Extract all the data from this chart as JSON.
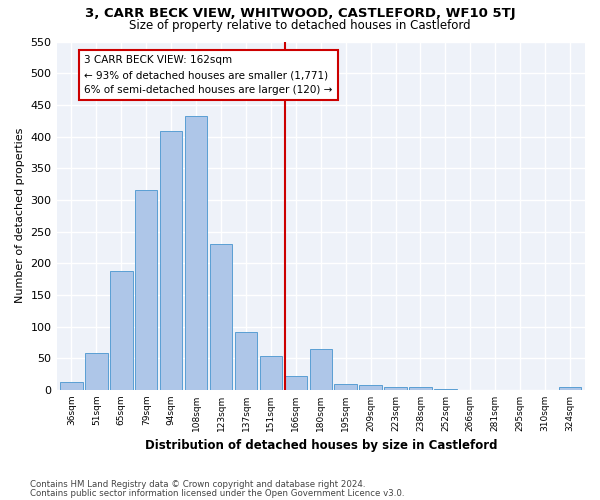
{
  "title": "3, CARR BECK VIEW, WHITWOOD, CASTLEFORD, WF10 5TJ",
  "subtitle": "Size of property relative to detached houses in Castleford",
  "xlabel": "Distribution of detached houses by size in Castleford",
  "ylabel": "Number of detached properties",
  "categories": [
    "36sqm",
    "51sqm",
    "65sqm",
    "79sqm",
    "94sqm",
    "108sqm",
    "123sqm",
    "137sqm",
    "151sqm",
    "166sqm",
    "180sqm",
    "195sqm",
    "209sqm",
    "223sqm",
    "238sqm",
    "252sqm",
    "266sqm",
    "281sqm",
    "295sqm",
    "310sqm",
    "324sqm"
  ],
  "values": [
    13,
    58,
    188,
    315,
    408,
    432,
    231,
    91,
    53,
    22,
    65,
    10,
    8,
    5,
    4,
    2,
    0,
    0,
    0,
    0,
    5
  ],
  "bar_color": "#aec6e8",
  "bar_edge_color": "#5a9fd4",
  "marker_label": "3 CARR BECK VIEW: 162sqm",
  "annotation_line1": "← 93% of detached houses are smaller (1,771)",
  "annotation_line2": "6% of semi-detached houses are larger (120) →",
  "marker_color": "#cc0000",
  "ylim": [
    0,
    550
  ],
  "yticks": [
    0,
    50,
    100,
    150,
    200,
    250,
    300,
    350,
    400,
    450,
    500,
    550
  ],
  "background_color": "#eef2f9",
  "grid_color": "#ffffff",
  "footnote1": "Contains HM Land Registry data © Crown copyright and database right 2024.",
  "footnote2": "Contains public sector information licensed under the Open Government Licence v3.0."
}
